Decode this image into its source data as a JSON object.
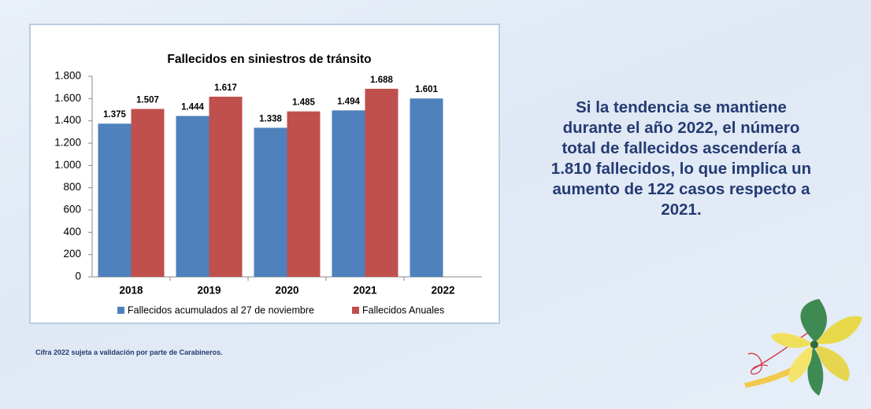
{
  "chart_data": {
    "type": "bar",
    "title": "Fallecidos en siniestros de tránsito",
    "categories": [
      "2018",
      "2019",
      "2020",
      "2021",
      "2022"
    ],
    "series": [
      {
        "name": "Fallecidos acumulados al 27 de noviembre",
        "color": "#4f81bd",
        "values": [
          1375,
          1444,
          1338,
          1494,
          1601
        ],
        "value_labels": [
          "1.375",
          "1.444",
          "1.338",
          "1.494",
          "1.601"
        ]
      },
      {
        "name": "Fallecidos Anuales",
        "color": "#c0504d",
        "values": [
          1507,
          1617,
          1485,
          1688,
          null
        ],
        "value_labels": [
          "1.507",
          "1.617",
          "1.485",
          "1.688",
          null
        ]
      }
    ],
    "ylim": [
      0,
      1800
    ],
    "yticks": [
      0,
      200,
      400,
      600,
      800,
      {
        "value": 1000,
        "label": "1.000"
      },
      {
        "value": 1200,
        "label": "1.200"
      },
      {
        "value": 1400,
        "label": "1.400"
      },
      {
        "value": 1600,
        "label": "1.600"
      },
      {
        "value": 1800,
        "label": "1.800"
      }
    ],
    "grid": false,
    "legend": "bottom"
  },
  "paragraph": [
    "Si la tendencia se mantiene",
    "durante el año 2022, el número",
    "total de fallecidos ascendería a",
    "1.810 fallecidos, lo que implica un",
    "aumento de 122 casos respecto a",
    "2021."
  ],
  "footnote": "Cifra 2022 sujeta a validación por parte de Carabineros."
}
